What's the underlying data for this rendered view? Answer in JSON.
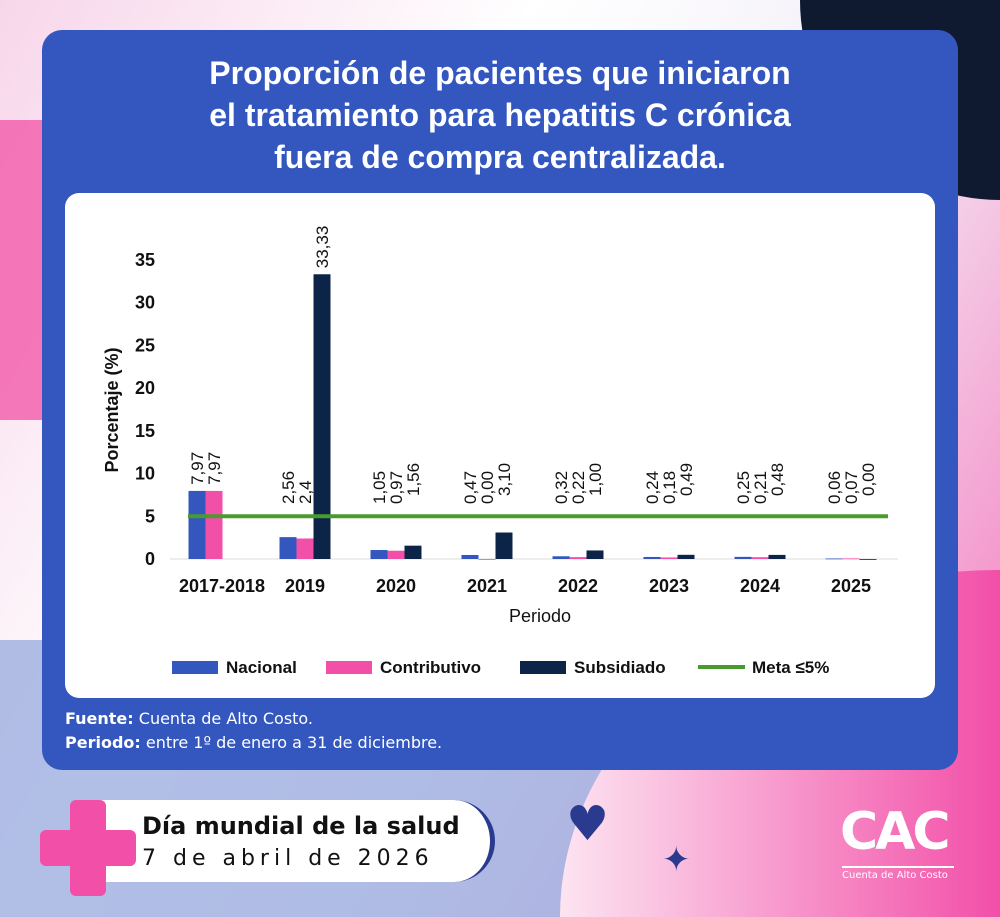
{
  "title": [
    "Proporción de pacientes que iniciaron",
    "el tratamiento para hepatitis C crónica",
    "fuera de compra centralizada."
  ],
  "footer": {
    "source_label": "Fuente:",
    "source_text": "Cuenta de Alto Costo.",
    "period_label": "Periodo:",
    "period_text": "entre 1º de enero a 31 de diciembre."
  },
  "event": {
    "name": "Día mundial de la salud",
    "date": "7 de abril de 2026"
  },
  "logo": {
    "text": "CAC",
    "subtitle": "Cuenta de Alto Costo"
  },
  "chart_data": {
    "type": "bar",
    "xlabel": "Periodo",
    "ylabel": "Porcentaje (%)",
    "ylim": [
      0,
      35
    ],
    "yticks": [
      0,
      5,
      10,
      15,
      20,
      25,
      30,
      35
    ],
    "grid": false,
    "legend_position": "bottom",
    "categories": [
      "2017-2018",
      "2019",
      "2020",
      "2021",
      "2022",
      "2023",
      "2024",
      "2025"
    ],
    "series": [
      {
        "name": "Nacional",
        "color": "#3357bf",
        "values": [
          7.97,
          2.56,
          1.05,
          0.47,
          0.32,
          0.24,
          0.25,
          0.06
        ],
        "labels": [
          "7,97",
          "2,56",
          "1,05",
          "0,47",
          "0,32",
          "0,24",
          "0,25",
          "0,06"
        ]
      },
      {
        "name": "Contributivo",
        "color": "#f24fa8",
        "values": [
          7.97,
          2.4,
          0.97,
          0.0,
          0.22,
          0.18,
          0.21,
          0.07
        ],
        "labels": [
          "7,97",
          "2,4",
          "0,97",
          "0,00",
          "0,22",
          "0,18",
          "0,21",
          "0,07"
        ]
      },
      {
        "name": "Subsidiado",
        "color": "#0b2447",
        "values": [
          null,
          33.33,
          1.56,
          3.1,
          1.0,
          0.49,
          0.48,
          0.0
        ],
        "labels": [
          null,
          "33,33",
          "1,56",
          "3,10",
          "1,00",
          "0,49",
          "0,48",
          "0,00"
        ]
      }
    ],
    "reference_line": {
      "name": "Meta ≤5%",
      "value": 5,
      "color": "#4a9a2e"
    }
  }
}
